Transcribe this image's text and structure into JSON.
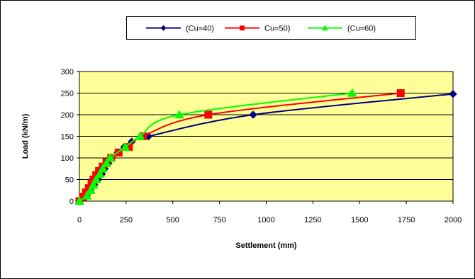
{
  "chart_data": {
    "type": "line",
    "title": "",
    "xlabel": "Settlement (mm)",
    "ylabel": "Load (kN/m)",
    "xlim": [
      0,
      2000
    ],
    "ylim": [
      0,
      300
    ],
    "x_ticks": [
      "0",
      "250",
      "500",
      "750",
      "1000",
      "1250",
      "1500",
      "1750",
      "2000"
    ],
    "y_ticks": [
      "0",
      "50",
      "100",
      "150",
      "200",
      "250",
      "300"
    ],
    "grid": "horizontal",
    "legend_position": "top-center",
    "plot_background": "#ffff99",
    "series": [
      {
        "name": "(Cu=40)",
        "color": "#000080",
        "marker": "diamond",
        "points": [
          [
            0,
            0
          ],
          [
            40,
            12.5
          ],
          [
            60,
            25
          ],
          [
            80,
            37.5
          ],
          [
            100,
            50
          ],
          [
            120,
            62.5
          ],
          [
            135,
            75
          ],
          [
            155,
            87.5
          ],
          [
            175,
            100
          ],
          [
            205,
            112.5
          ],
          [
            240,
            125
          ],
          [
            280,
            137.5
          ],
          [
            370,
            150
          ],
          [
            930,
            200
          ],
          [
            2000,
            248
          ]
        ]
      },
      {
        "name": "Cu=50)",
        "color": "#ff0000",
        "marker": "square",
        "points": [
          [
            0,
            0
          ],
          [
            20,
            10
          ],
          [
            35,
            20
          ],
          [
            50,
            30
          ],
          [
            65,
            40
          ],
          [
            75,
            50
          ],
          [
            90,
            60
          ],
          [
            105,
            70
          ],
          [
            125,
            80
          ],
          [
            145,
            90
          ],
          [
            170,
            100
          ],
          [
            210,
            112.5
          ],
          [
            265,
            125
          ],
          [
            340,
            150
          ],
          [
            690,
            200
          ],
          [
            1720,
            250
          ]
        ]
      },
      {
        "name": "(Cu=60)",
        "color": "#00ff00",
        "marker": "triangle",
        "points": [
          [
            0,
            0
          ],
          [
            40,
            12.5
          ],
          [
            60,
            25
          ],
          [
            75,
            37.5
          ],
          [
            90,
            50
          ],
          [
            110,
            62.5
          ],
          [
            125,
            75
          ],
          [
            145,
            87.5
          ],
          [
            165,
            100
          ],
          [
            245,
            125
          ],
          [
            325,
            150
          ],
          [
            535,
            200
          ],
          [
            1460,
            250
          ]
        ]
      }
    ]
  }
}
